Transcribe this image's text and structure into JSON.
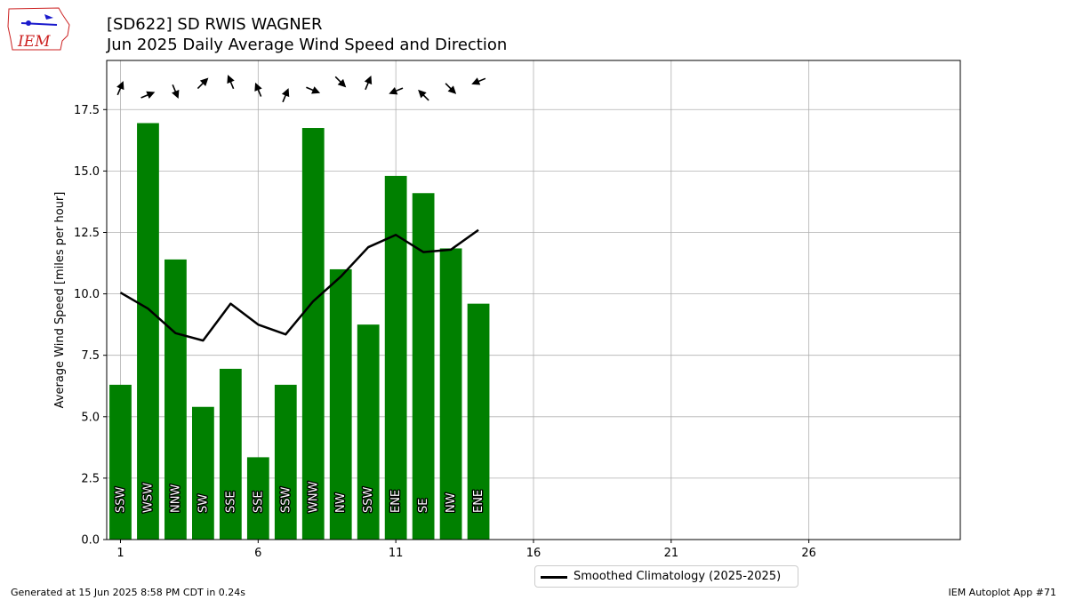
{
  "header": {
    "title_line1": "[SD622] SD RWIS WAGNER",
    "title_line2": "Jun 2025 Daily Average Wind Speed and Direction"
  },
  "logo": {
    "text": "IEM",
    "icon": "iowa-state-logo"
  },
  "footer": {
    "left": "Generated at 15 Jun 2025 8:58 PM CDT in 0.24s",
    "right": "IEM Autoplot App #71"
  },
  "colors": {
    "bar": "#008000",
    "line": "#000000",
    "grid": "#b0b0b0",
    "logo": "#cc2222"
  },
  "chart_data": {
    "type": "bar",
    "ylabel": "Average Wind Speed [miles per hour]",
    "xlabel": "",
    "xlim": [
      0.5,
      31.5
    ],
    "ylim": [
      0,
      19.5
    ],
    "xticks": [
      1,
      6,
      11,
      16,
      21,
      26
    ],
    "yticks": [
      0.0,
      2.5,
      5.0,
      7.5,
      10.0,
      12.5,
      15.0,
      17.5
    ],
    "grid": true,
    "legend_position": "bottom-center",
    "days": [
      1,
      2,
      3,
      4,
      5,
      6,
      7,
      8,
      9,
      10,
      11,
      12,
      13,
      14
    ],
    "series": [
      {
        "kind": "bar",
        "values": [
          6.3,
          16.95,
          11.4,
          5.4,
          6.95,
          3.35,
          6.3,
          16.75,
          11.0,
          8.75,
          14.8,
          14.1,
          11.85,
          9.6
        ],
        "direction_labels": [
          "SSW",
          "WSW",
          "NNW",
          "SW",
          "SSE",
          "SSE",
          "SSW",
          "WNW",
          "NW",
          "SSW",
          "ENE",
          "SE",
          "NW",
          "ENE"
        ],
        "direction_degrees": [
          202.5,
          247.5,
          337.5,
          225,
          157.5,
          157.5,
          202.5,
          292.5,
          315,
          202.5,
          67.5,
          135,
          315,
          67.5
        ]
      },
      {
        "kind": "line",
        "name": "Smoothed Climatology (2025-2025)",
        "values": [
          10.05,
          9.4,
          8.4,
          8.1,
          9.6,
          8.75,
          8.35,
          9.7,
          10.7,
          11.9,
          12.4,
          11.7,
          11.8,
          12.6
        ]
      }
    ]
  }
}
